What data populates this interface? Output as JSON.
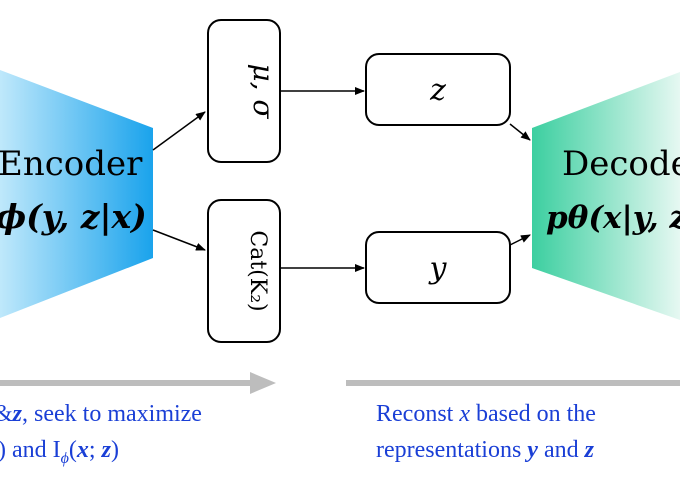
{
  "encoder": {
    "title": "Encoder",
    "formula": "qϕ(y, z|x)"
  },
  "decoder": {
    "title": "Decoder",
    "formula": "pθ(x|y, z)"
  },
  "nodes": {
    "mu_sigma": "μ, σ",
    "cat": "Cat(K₂)",
    "z": "z",
    "y": "y"
  },
  "captions": {
    "left_line1_suffix": ", seek to maximize",
    "left_line2_prefix": ") and I",
    "right_line1_prefix": "Reconst ",
    "right_line1_suffix": " based on the",
    "right_line2_prefix": "representations ",
    "right_line2_mid": " and "
  },
  "colors": {
    "encoder_gradient": [
      "#bfe8fb",
      "#1aa3ec"
    ],
    "decoder_gradient": [
      "#3ccfa0",
      "#e6f8f2"
    ],
    "caption": "#1a3fd6",
    "arrow_gray": "#bdbdbd"
  }
}
